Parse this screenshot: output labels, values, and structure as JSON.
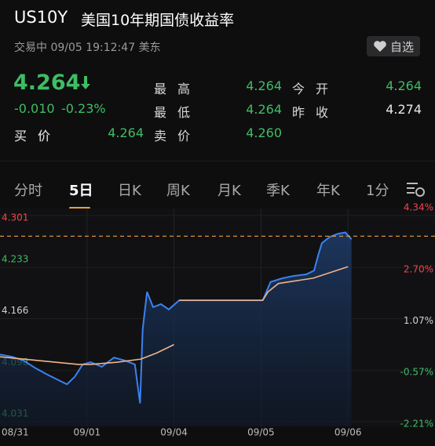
{
  "header": {
    "symbol": "US10Y",
    "name": "美国10年期国债收益率",
    "status": "交易中 09/05 19:12:47 美东",
    "watch_button": "自选"
  },
  "quote": {
    "price": "4.264",
    "change": "-0.010",
    "change_pct": "-0.23%",
    "stats": [
      {
        "label": "最高",
        "value": "4.264",
        "color": "#3fbd64"
      },
      {
        "label": "今开",
        "value": "4.264",
        "color": "#3fbd64"
      },
      {
        "label": "最低",
        "value": "4.264",
        "color": "#3fbd64"
      },
      {
        "label": "昨收",
        "value": "4.274",
        "color": "#e8e8e8"
      },
      {
        "label": "买价",
        "value": "4.264",
        "color": "#3fbd64"
      },
      {
        "label": "卖价",
        "value": "4.260",
        "color": "#3fbd64"
      }
    ]
  },
  "tabs": {
    "items": [
      "分时",
      "5日",
      "日K",
      "周K",
      "月K",
      "季K",
      "年K",
      "1分"
    ],
    "active": 1
  },
  "chart_data": {
    "type": "line",
    "ylim": [
      4.031,
      4.301
    ],
    "yticks": [
      4.031,
      4.098,
      4.166,
      4.233,
      4.301
    ],
    "y2lim": [
      -2.21,
      4.34
    ],
    "y2ticks": [
      {
        "value": -2.21,
        "label": "-2.21%"
      },
      {
        "value": -0.57,
        "label": "-0.57%"
      },
      {
        "value": 1.07,
        "label": "1.07%"
      },
      {
        "value": 2.7,
        "label": "2.70%"
      },
      {
        "value": 4.34,
        "label": "4.34%"
      }
    ],
    "xlim": [
      0,
      5
    ],
    "xticks": [
      {
        "value": 0,
        "label": "08/31"
      },
      {
        "value": 1,
        "label": "09/01"
      },
      {
        "value": 2,
        "label": "09/04"
      },
      {
        "value": 3,
        "label": "09/05"
      },
      {
        "value": 4,
        "label": "09/06"
      }
    ],
    "reference_value": 4.274,
    "reference_color": "#f39c3c",
    "series": [
      {
        "color": "#3b82f0",
        "x": [
          0,
          0.14,
          0.27,
          0.41,
          0.54,
          0.68,
          0.77,
          0.86,
          0.95,
          1.04,
          1.17,
          1.31,
          1.44,
          1.55,
          1.61,
          1.64,
          1.69,
          1.76,
          1.85,
          1.94,
          2.06,
          3.02,
          3.11,
          3.25,
          3.38,
          3.52,
          3.61,
          3.66,
          3.7,
          3.79,
          3.88,
          3.97,
          4.04
        ],
        "values": [
          4.119,
          4.116,
          4.111,
          4.101,
          4.093,
          4.085,
          4.08,
          4.09,
          4.106,
          4.109,
          4.103,
          4.115,
          4.111,
          4.106,
          4.055,
          4.152,
          4.201,
          4.181,
          4.185,
          4.178,
          4.19,
          4.19,
          4.214,
          4.219,
          4.222,
          4.224,
          4.229,
          4.25,
          4.265,
          4.273,
          4.277,
          4.279,
          4.27
        ]
      },
      {
        "color": "#f0b48a",
        "x": [
          0,
          0.45,
          0.9,
          1.04,
          1.35,
          1.62,
          1.8,
          2.0,
          2.03,
          2.06,
          3.02,
          3.08,
          3.2,
          3.6,
          4.0
        ],
        "values": [
          4.116,
          4.111,
          4.106,
          4.106,
          4.109,
          4.113,
          4.121,
          4.132,
          null,
          4.19,
          4.19,
          4.201,
          4.212,
          4.219,
          4.234
        ]
      }
    ]
  }
}
